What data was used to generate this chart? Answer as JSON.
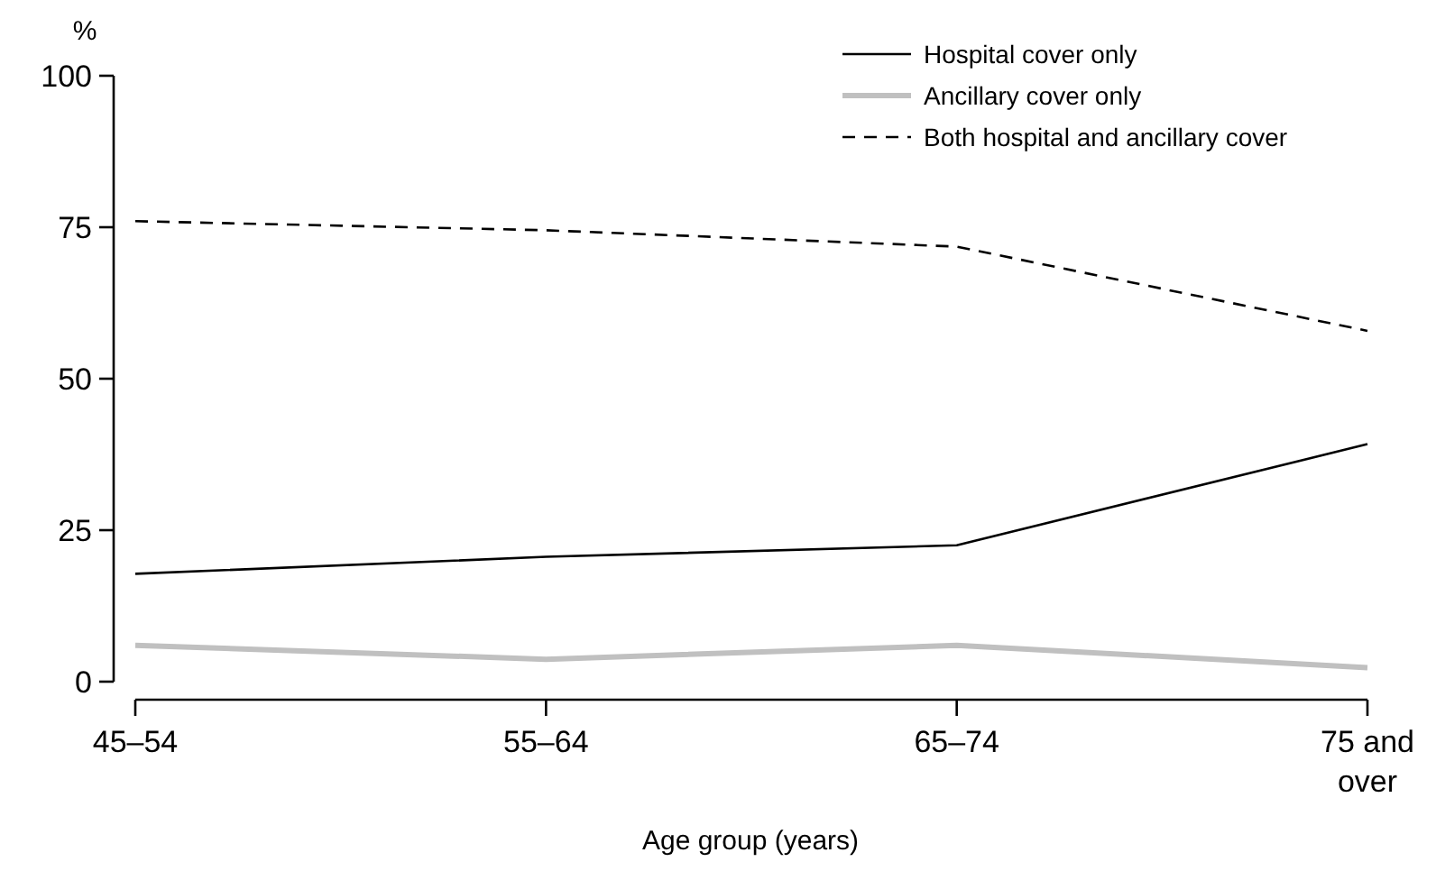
{
  "chart_data": {
    "type": "line",
    "xlabel": "Age group (years)",
    "ylabel": "%",
    "categories": [
      "45–54",
      "55–64",
      "65–74",
      "75 and over"
    ],
    "series": [
      {
        "name": "Hospital cover only",
        "color": "#000000",
        "values": [
          17.8,
          20.6,
          22.5,
          39.2
        ],
        "line_style": "solid"
      },
      {
        "name": "Ancillary cover only",
        "color": "#c0c0c0",
        "values": [
          6.0,
          3.7,
          6.0,
          2.3
        ],
        "line_style": "solid"
      },
      {
        "name": "Both hospital and ancillary cover",
        "color": "#000000",
        "values": [
          76.0,
          74.5,
          71.8,
          57.9
        ],
        "line_style": "dashed"
      }
    ],
    "ylim": [
      0,
      100
    ],
    "yticks": [
      0,
      25,
      50,
      75,
      100
    ],
    "grid": false,
    "legend": "top right",
    "marker": "none"
  }
}
